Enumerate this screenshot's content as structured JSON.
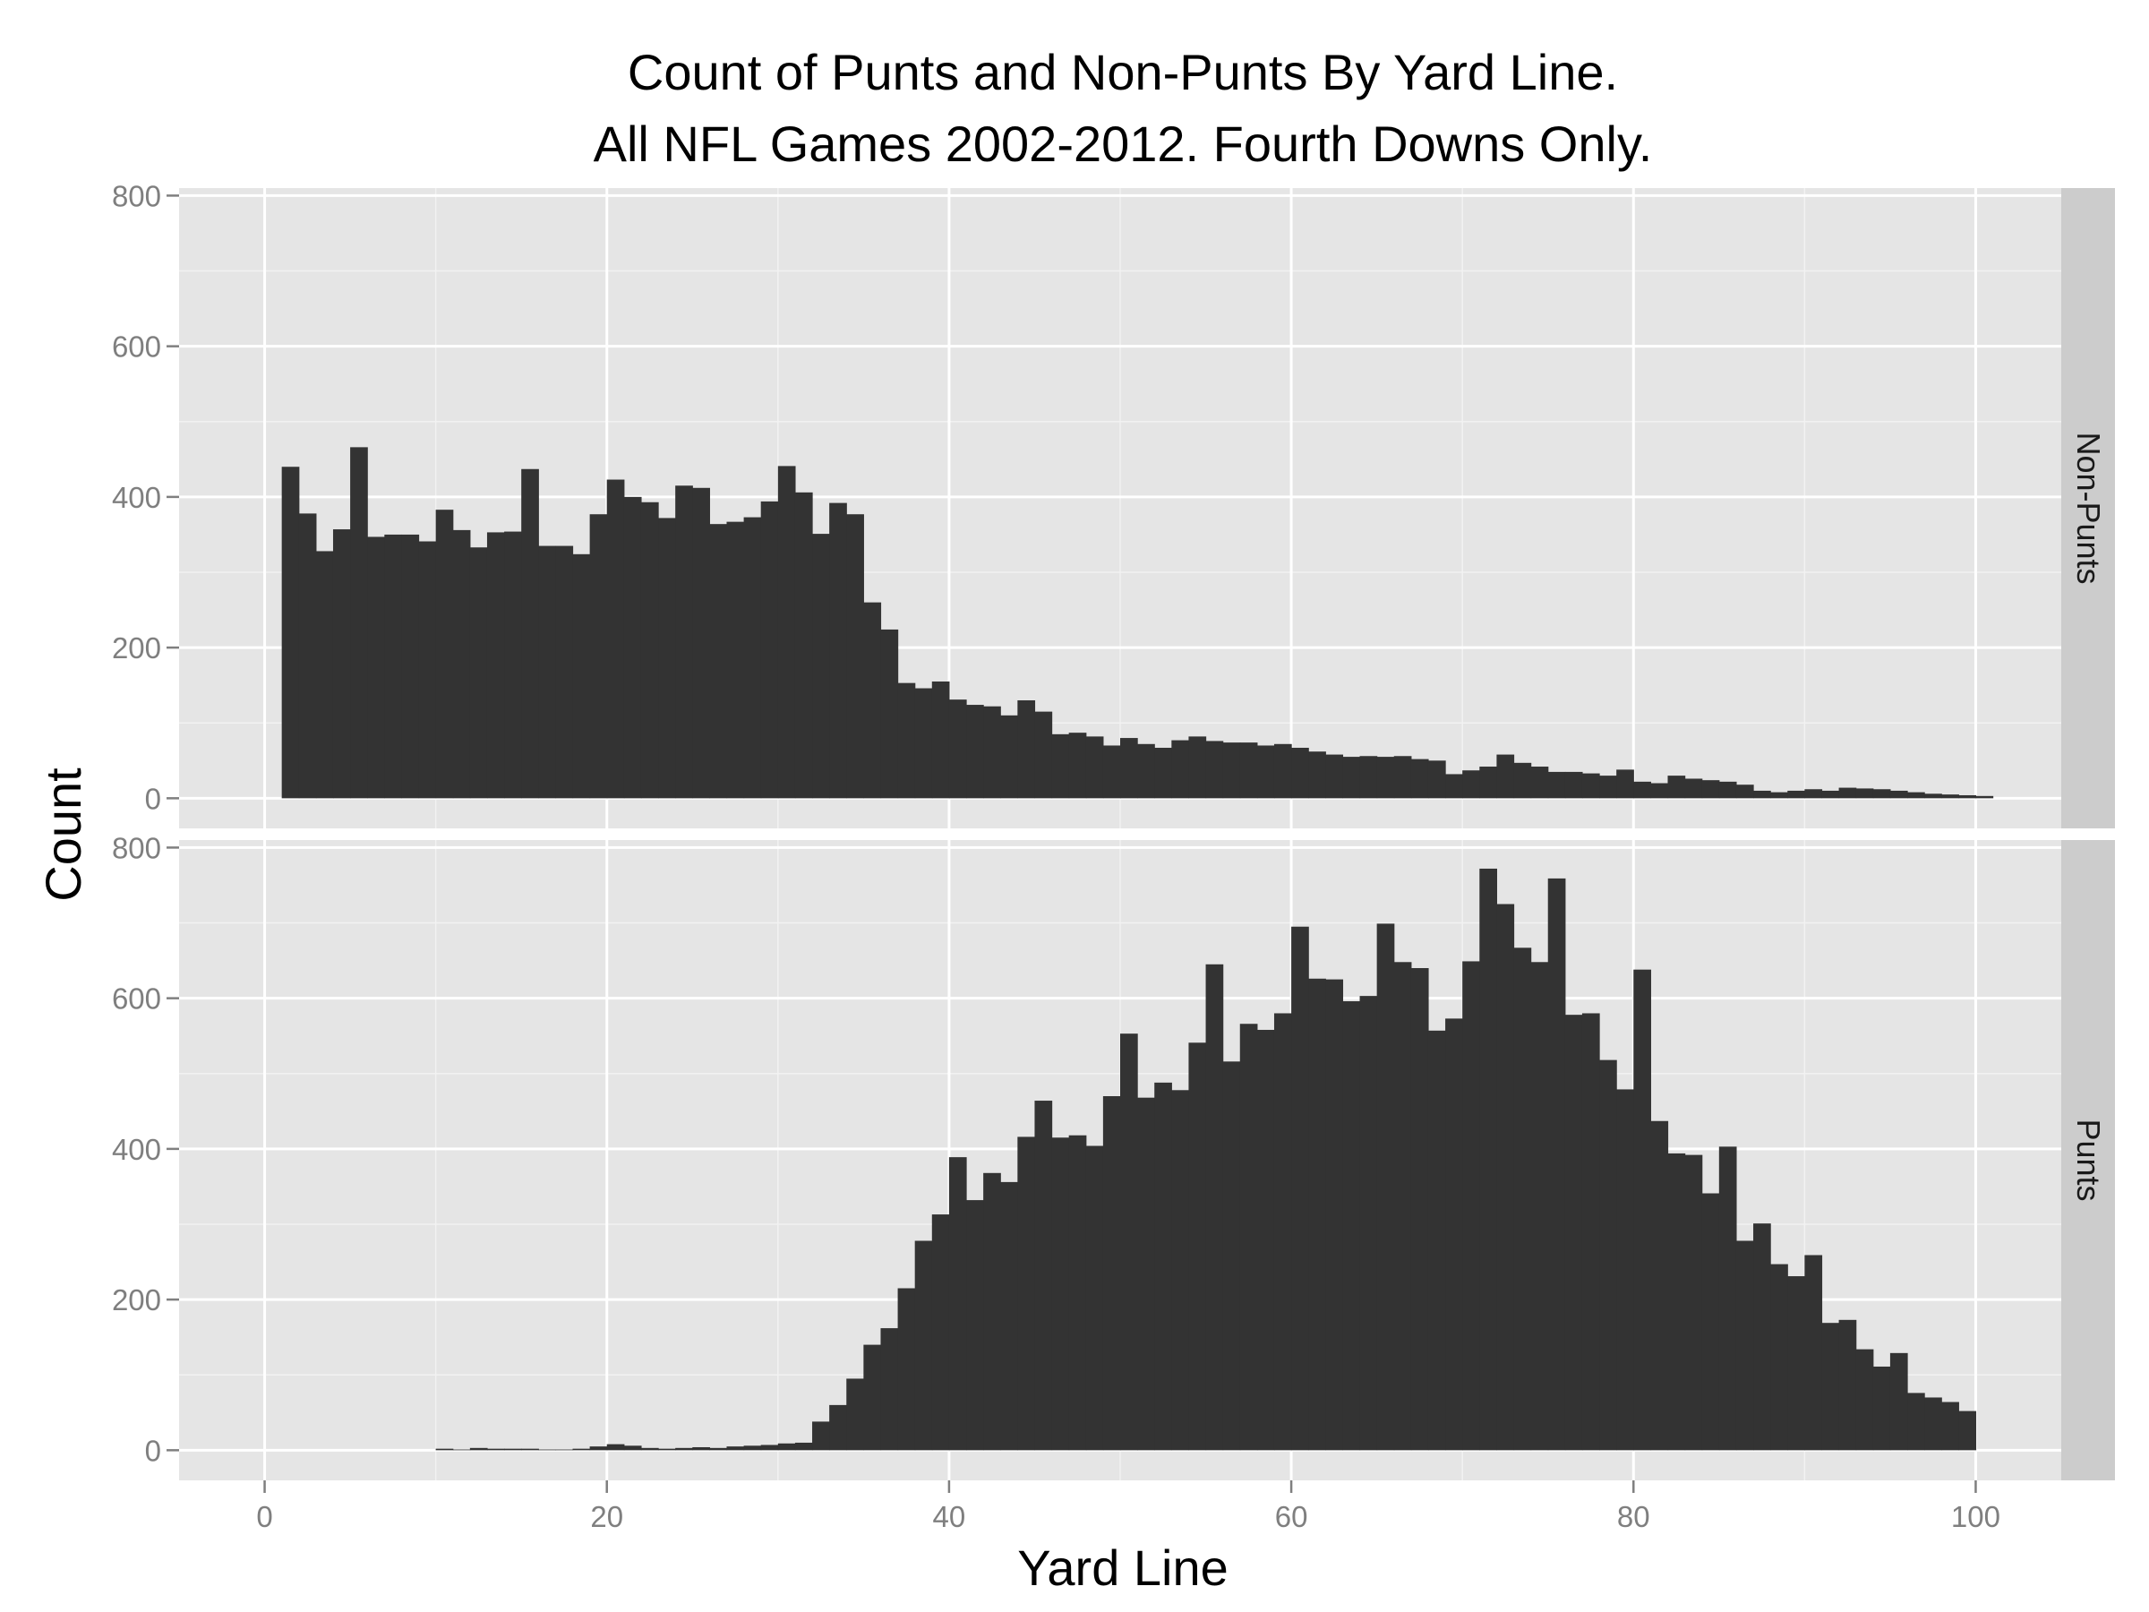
{
  "chart_data": {
    "type": "bar",
    "subtype": "histogram",
    "title_lines": [
      "Count of Punts and Non-Punts By Yard Line.",
      "All NFL Games 2002-2012. Fourth Downs Only."
    ],
    "xlabel": "Yard Line",
    "ylabel": "Count",
    "xlim": [
      -5,
      105
    ],
    "ylim": [
      -40,
      810
    ],
    "x_ticks": [
      0,
      20,
      40,
      60,
      80,
      100
    ],
    "y_ticks": [
      0,
      200,
      400,
      600,
      800
    ],
    "bin_width": 1,
    "x_start": 1,
    "grid": true,
    "colors": {
      "panel_background": "#e5e5e5",
      "grid_major": "#ffffff",
      "grid_minor": "#f2f2f2",
      "bar_fill": "#333333",
      "strip_background": "#cccccc",
      "tick_text": "#7f7f7f"
    },
    "facets": [
      {
        "strip_label": "Non-Punts",
        "values": [
          440,
          378,
          328,
          357,
          466,
          347,
          350,
          350,
          341,
          383,
          356,
          333,
          353,
          354,
          437,
          335,
          335,
          324,
          377,
          423,
          400,
          393,
          372,
          415,
          412,
          364,
          367,
          373,
          394,
          441,
          406,
          351,
          392,
          377,
          260,
          224,
          153,
          146,
          155,
          131,
          124,
          122,
          110,
          130,
          115,
          85,
          87,
          82,
          70,
          80,
          72,
          67,
          77,
          82,
          76,
          74,
          74,
          70,
          72,
          67,
          62,
          58,
          55,
          56,
          55,
          56,
          52,
          50,
          32,
          37,
          42,
          58,
          47,
          42,
          35,
          35,
          33,
          30,
          38,
          22,
          20,
          30,
          26,
          24,
          22,
          18,
          10,
          8,
          10,
          12,
          10,
          14,
          13,
          12,
          10,
          8,
          6,
          5,
          4,
          3
        ]
      },
      {
        "strip_label": "Punts",
        "values": [
          0,
          0,
          0,
          0,
          0,
          0,
          0,
          0,
          0,
          2,
          1,
          3,
          2,
          2,
          2,
          1,
          1,
          2,
          5,
          8,
          6,
          3,
          2,
          3,
          4,
          3,
          5,
          6,
          7,
          9,
          10,
          38,
          60,
          95,
          140,
          162,
          215,
          278,
          313,
          389,
          332,
          368,
          356,
          416,
          464,
          415,
          418,
          404,
          470,
          553,
          468,
          488,
          478,
          541,
          645,
          516,
          566,
          558,
          580,
          695,
          626,
          625,
          596,
          603,
          699,
          648,
          640,
          557,
          573,
          649,
          772,
          725,
          667,
          648,
          759,
          578,
          580,
          518,
          479,
          638,
          437,
          394,
          392,
          341,
          403,
          278,
          301,
          247,
          231,
          259,
          169,
          173,
          134,
          111,
          129,
          76,
          70,
          64,
          52,
          0
        ]
      }
    ]
  }
}
